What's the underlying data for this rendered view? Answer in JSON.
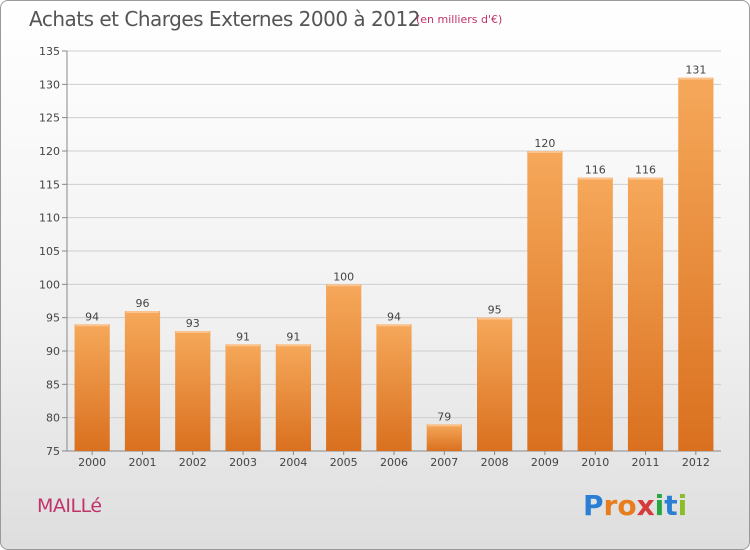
{
  "title": "Achats et Charges Externes 2000 à 2012",
  "subtitle": "(en milliers d'€)",
  "commune": "MAILLé",
  "logo": {
    "letters": [
      "P",
      "r",
      "o",
      "x",
      "i",
      "t",
      "i"
    ],
    "colors": [
      "#2a7fd4",
      "#e77d1c",
      "#e77d1c",
      "#d63b3b",
      "#2aa63e",
      "#2a7fd4",
      "#8bbd2a"
    ]
  },
  "colors": {
    "bar_top": "#f6a85a",
    "bar_bottom": "#d9701f",
    "title": "#555555",
    "accent": "#c0336b"
  },
  "chart_data": {
    "type": "bar",
    "categories": [
      "2000",
      "2001",
      "2002",
      "2003",
      "2004",
      "2005",
      "2006",
      "2007",
      "2008",
      "2009",
      "2010",
      "2011",
      "2012"
    ],
    "values": [
      94,
      96,
      93,
      91,
      91,
      100,
      94,
      79,
      95,
      120,
      116,
      116,
      131
    ],
    "ylim": [
      75,
      135
    ],
    "yticks": [
      75,
      80,
      85,
      90,
      95,
      100,
      105,
      110,
      115,
      120,
      125,
      130,
      135
    ],
    "grid": true
  }
}
